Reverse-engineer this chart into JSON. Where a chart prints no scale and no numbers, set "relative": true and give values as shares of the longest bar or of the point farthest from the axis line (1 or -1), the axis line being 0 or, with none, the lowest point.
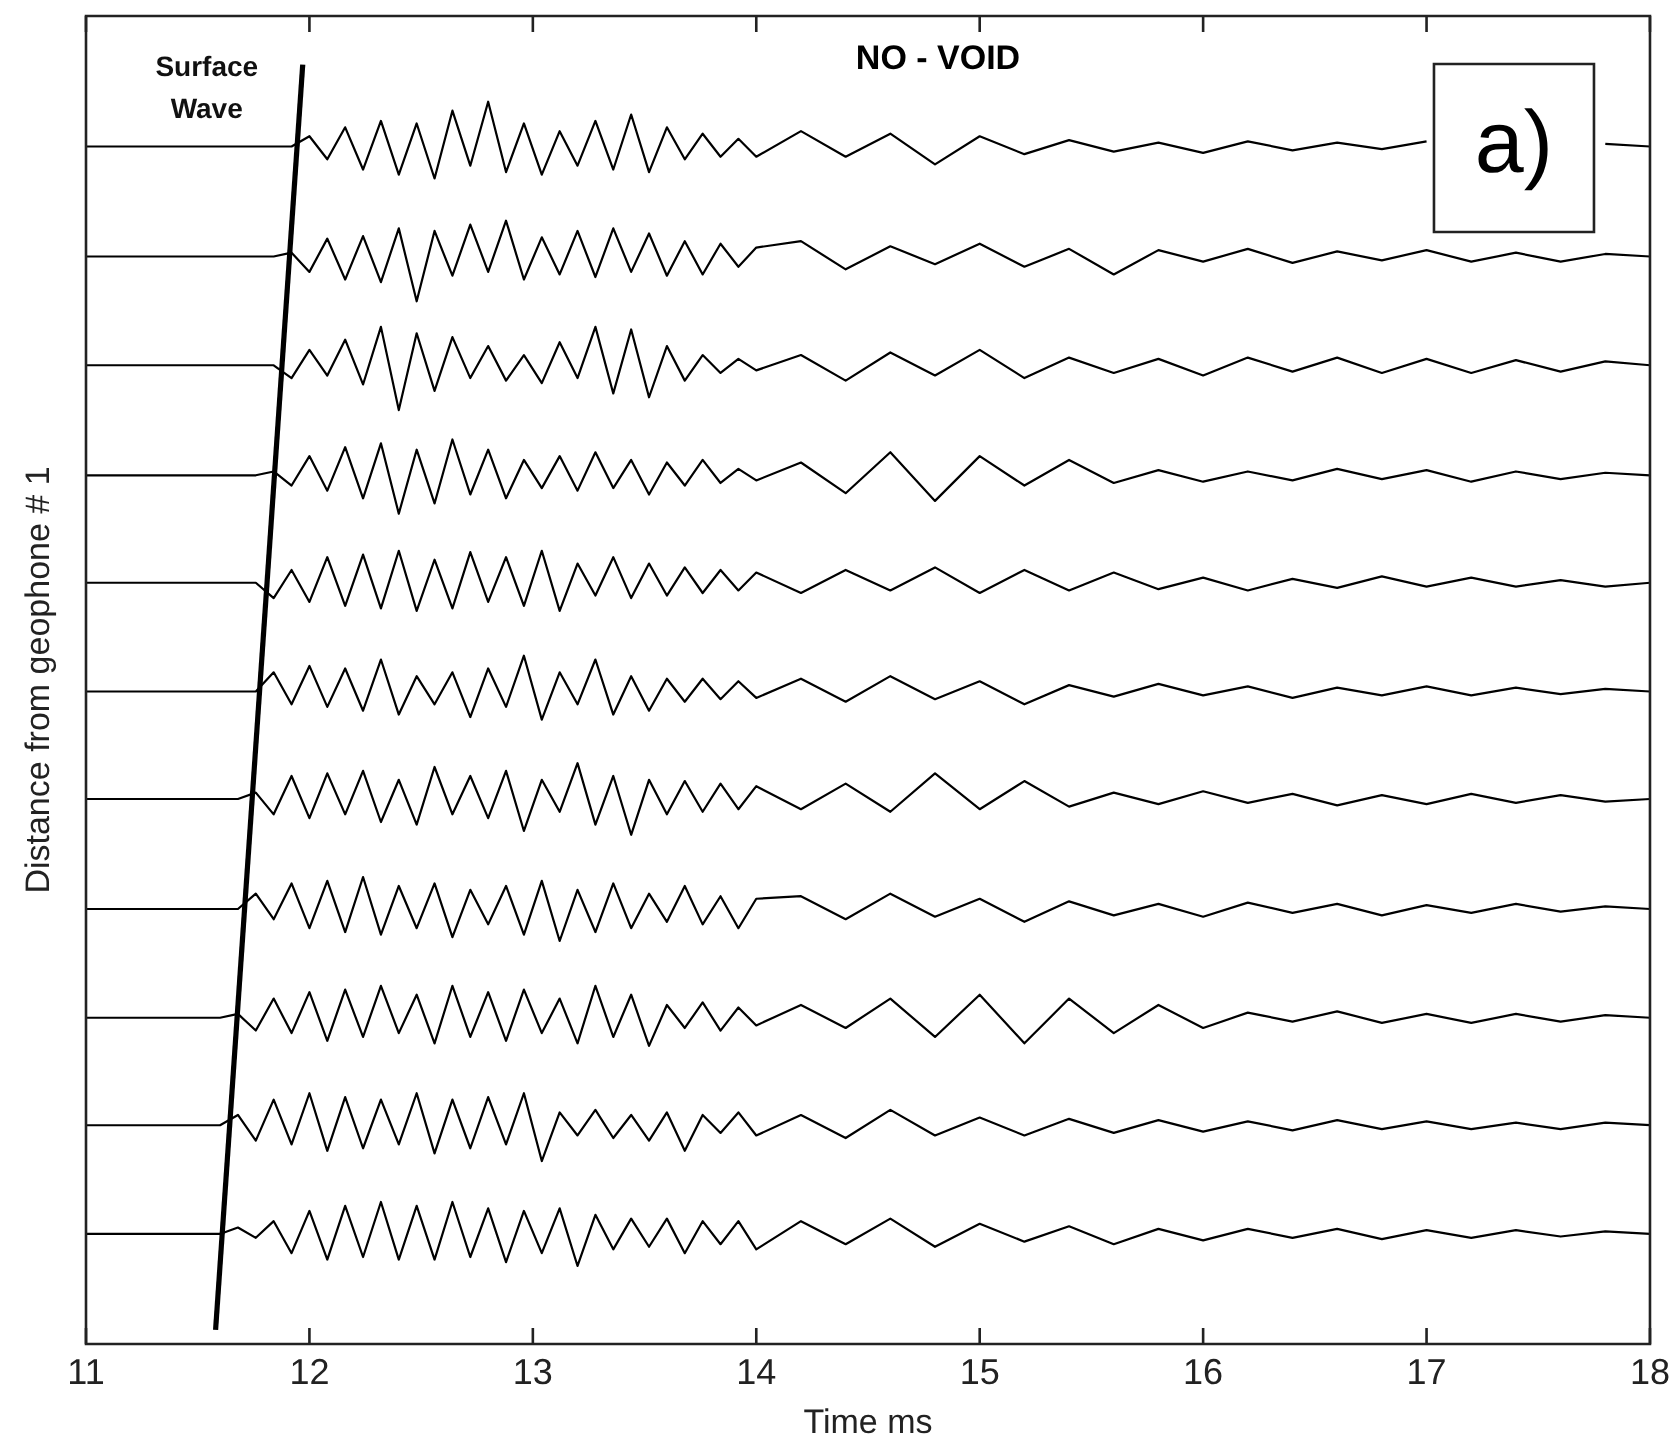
{
  "chart_data": {
    "type": "line",
    "title": "NO - VOID",
    "xlabel": "Time ms",
    "ylabel": "Distance from geophone # 1",
    "relative": true,
    "legend": false,
    "grid": false,
    "marker": "none",
    "line_style": "solid",
    "annotations": [
      "a)"
    ],
    "xlim": [
      11,
      18
    ],
    "xticks": [
      11,
      12,
      13,
      14,
      15,
      16,
      17,
      18
    ],
    "x": [
      11,
      11.6,
      11.68,
      11.76,
      11.84,
      11.92,
      12.0,
      12.08,
      12.16,
      12.24,
      12.32,
      12.4,
      12.48,
      12.56,
      12.64,
      12.72,
      12.8,
      12.88,
      12.96,
      13.04,
      13.12,
      13.2,
      13.28,
      13.36,
      13.44,
      13.52,
      13.6,
      13.68,
      13.76,
      13.84,
      13.92,
      14.0,
      14.2,
      14.4,
      14.6,
      14.8,
      15.0,
      15.2,
      15.4,
      15.6,
      15.8,
      16.0,
      16.2,
      16.4,
      16.6,
      16.8,
      17.0,
      17.2,
      17.4,
      17.6,
      17.8,
      18.0
    ],
    "series": [
      {
        "type": "line",
        "color": "#000000",
        "values": [
          0.936,
          0.936,
          0.936,
          0.936,
          0.936,
          0.936,
          0.944,
          0.926,
          0.951,
          0.918,
          0.956,
          0.914,
          0.954,
          0.911,
          0.964,
          0.921,
          0.971,
          0.916,
          0.954,
          0.914,
          0.948,
          0.921,
          0.956,
          0.918,
          0.961,
          0.916,
          0.951,
          0.926,
          0.946,
          0.928,
          0.942,
          0.928,
          0.948,
          0.928,
          0.946,
          0.922,
          0.944,
          0.93,
          0.941,
          0.932,
          0.939,
          0.931,
          0.94,
          0.933,
          0.939,
          0.934,
          0.94,
          null,
          null,
          null,
          0.938,
          0.936
        ]
      },
      {
        "type": "line",
        "color": "#000000",
        "values": [
          0.85,
          0.85,
          0.85,
          0.85,
          0.85,
          0.853,
          0.838,
          0.864,
          0.832,
          0.866,
          0.83,
          0.872,
          0.815,
          0.87,
          0.835,
          0.875,
          0.838,
          0.878,
          0.832,
          0.865,
          0.836,
          0.87,
          0.834,
          0.872,
          0.838,
          0.868,
          0.835,
          0.862,
          0.836,
          0.86,
          0.842,
          0.857,
          0.862,
          0.84,
          0.858,
          0.844,
          0.86,
          0.842,
          0.856,
          0.836,
          0.855,
          0.846,
          0.856,
          0.845,
          0.854,
          0.847,
          0.855,
          0.846,
          0.853,
          0.846,
          0.852,
          0.85
        ]
      },
      {
        "type": "line",
        "color": "#000000",
        "values": [
          0.765,
          0.765,
          0.765,
          0.765,
          0.765,
          0.755,
          0.777,
          0.757,
          0.785,
          0.75,
          0.795,
          0.73,
          0.79,
          0.745,
          0.787,
          0.755,
          0.78,
          0.753,
          0.773,
          0.751,
          0.783,
          0.755,
          0.795,
          0.743,
          0.793,
          0.74,
          0.78,
          0.753,
          0.773,
          0.759,
          0.77,
          0.761,
          0.773,
          0.753,
          0.775,
          0.757,
          0.777,
          0.755,
          0.771,
          0.759,
          0.77,
          0.757,
          0.771,
          0.76,
          0.771,
          0.759,
          0.77,
          0.759,
          0.769,
          0.76,
          0.768,
          0.765
        ]
      },
      {
        "type": "line",
        "color": "#000000",
        "values": [
          0.679,
          0.679,
          0.679,
          0.679,
          0.682,
          0.671,
          0.694,
          0.667,
          0.701,
          0.661,
          0.704,
          0.649,
          0.699,
          0.657,
          0.707,
          0.664,
          0.699,
          0.661,
          0.691,
          0.669,
          0.694,
          0.667,
          0.697,
          0.669,
          0.691,
          0.664,
          0.689,
          0.671,
          0.691,
          0.673,
          0.684,
          0.675,
          0.689,
          0.665,
          0.697,
          0.659,
          0.694,
          0.671,
          0.691,
          0.673,
          0.683,
          0.674,
          0.682,
          0.675,
          0.684,
          0.676,
          0.683,
          0.674,
          0.682,
          0.676,
          0.681,
          0.679
        ]
      },
      {
        "type": "line",
        "color": "#000000",
        "values": [
          0.595,
          0.595,
          0.595,
          0.595,
          0.583,
          0.605,
          0.58,
          0.615,
          0.577,
          0.617,
          0.575,
          0.62,
          0.573,
          0.613,
          0.575,
          0.619,
          0.58,
          0.615,
          0.577,
          0.62,
          0.573,
          0.61,
          0.585,
          0.615,
          0.583,
          0.61,
          0.585,
          0.607,
          0.587,
          0.605,
          0.589,
          0.603,
          0.587,
          0.605,
          0.589,
          0.607,
          0.587,
          0.605,
          0.589,
          0.603,
          0.59,
          0.599,
          0.589,
          0.598,
          0.591,
          0.6,
          0.592,
          0.599,
          0.592,
          0.597,
          0.592,
          0.595
        ]
      },
      {
        "type": "line",
        "color": "#000000",
        "values": [
          0.51,
          0.51,
          0.51,
          0.51,
          0.525,
          0.5,
          0.53,
          0.498,
          0.528,
          0.495,
          0.535,
          0.492,
          0.522,
          0.5,
          0.525,
          0.49,
          0.528,
          0.498,
          0.538,
          0.488,
          0.525,
          0.5,
          0.535,
          0.492,
          0.522,
          0.495,
          0.52,
          0.502,
          0.52,
          0.504,
          0.518,
          0.505,
          0.52,
          0.502,
          0.522,
          0.504,
          0.518,
          0.5,
          0.515,
          0.506,
          0.516,
          0.507,
          0.514,
          0.505,
          0.513,
          0.507,
          0.514,
          0.507,
          0.513,
          0.508,
          0.512,
          0.51
        ]
      },
      {
        "type": "line",
        "color": "#000000",
        "values": [
          0.426,
          0.426,
          0.426,
          0.431,
          0.414,
          0.444,
          0.411,
          0.446,
          0.414,
          0.448,
          0.408,
          0.441,
          0.406,
          0.451,
          0.414,
          0.444,
          0.411,
          0.448,
          0.401,
          0.441,
          0.416,
          0.454,
          0.406,
          0.444,
          0.398,
          0.441,
          0.414,
          0.44,
          0.416,
          0.438,
          0.418,
          0.436,
          0.418,
          0.438,
          0.416,
          0.446,
          0.418,
          0.44,
          0.42,
          0.431,
          0.422,
          0.432,
          0.423,
          0.43,
          0.421,
          0.429,
          0.422,
          0.43,
          0.423,
          0.429,
          0.424,
          0.426
        ]
      },
      {
        "type": "line",
        "color": "#000000",
        "values": [
          0.34,
          0.34,
          0.34,
          0.352,
          0.332,
          0.36,
          0.325,
          0.362,
          0.322,
          0.365,
          0.32,
          0.358,
          0.325,
          0.36,
          0.318,
          0.355,
          0.328,
          0.358,
          0.32,
          0.362,
          0.315,
          0.355,
          0.322,
          0.36,
          0.325,
          0.352,
          0.33,
          0.358,
          0.328,
          0.35,
          0.325,
          0.348,
          0.35,
          0.332,
          0.352,
          0.334,
          0.348,
          0.33,
          0.346,
          0.335,
          0.344,
          0.334,
          0.345,
          0.337,
          0.344,
          0.335,
          0.343,
          0.337,
          0.344,
          0.338,
          0.342,
          0.34
        ]
      },
      {
        "type": "line",
        "color": "#000000",
        "values": [
          0.255,
          0.255,
          0.258,
          0.245,
          0.27,
          0.243,
          0.275,
          0.237,
          0.277,
          0.24,
          0.28,
          0.243,
          0.273,
          0.235,
          0.28,
          0.24,
          0.275,
          0.237,
          0.277,
          0.243,
          0.27,
          0.235,
          0.28,
          0.24,
          0.273,
          0.233,
          0.265,
          0.247,
          0.267,
          0.245,
          0.263,
          0.249,
          0.265,
          0.247,
          0.27,
          0.24,
          0.273,
          0.235,
          0.27,
          0.243,
          0.265,
          0.247,
          0.259,
          0.252,
          0.26,
          0.251,
          0.258,
          0.251,
          0.258,
          0.252,
          0.257,
          0.255
        ]
      },
      {
        "type": "line",
        "color": "#000000",
        "values": [
          0.171,
          0.171,
          0.179,
          0.159,
          0.191,
          0.156,
          0.196,
          0.151,
          0.193,
          0.153,
          0.191,
          0.156,
          0.196,
          0.149,
          0.191,
          0.153,
          0.193,
          0.156,
          0.196,
          0.143,
          0.181,
          0.163,
          0.183,
          0.161,
          0.179,
          0.159,
          0.181,
          0.151,
          0.179,
          0.165,
          0.181,
          0.163,
          0.179,
          0.161,
          0.183,
          0.163,
          0.177,
          0.163,
          0.176,
          0.165,
          0.175,
          0.166,
          0.174,
          0.167,
          0.175,
          0.168,
          0.174,
          0.168,
          0.173,
          0.168,
          0.173,
          0.171
        ]
      },
      {
        "type": "line",
        "color": "#000000",
        "values": [
          0.086,
          0.086,
          0.091,
          0.083,
          0.096,
          0.071,
          0.104,
          0.066,
          0.108,
          0.068,
          0.111,
          0.066,
          0.108,
          0.066,
          0.111,
          0.068,
          0.106,
          0.064,
          0.104,
          0.071,
          0.106,
          0.061,
          0.101,
          0.074,
          0.098,
          0.076,
          0.098,
          0.071,
          0.096,
          0.078,
          0.096,
          0.074,
          0.096,
          0.078,
          0.098,
          0.076,
          0.094,
          0.08,
          0.092,
          0.078,
          0.09,
          0.081,
          0.09,
          0.083,
          0.09,
          0.082,
          0.089,
          0.083,
          0.089,
          0.084,
          0.088,
          0.086
        ]
      },
      {
        "name": "Surface Wave",
        "color": "#000000",
        "x": [
          11.58,
          11.97
        ],
        "values": [
          0.011,
          1
        ]
      }
    ]
  }
}
